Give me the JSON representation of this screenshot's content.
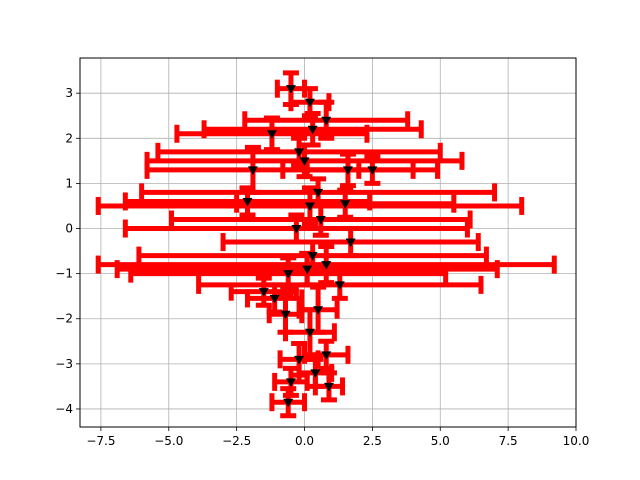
{
  "chart_data": {
    "type": "scatter",
    "title": "",
    "xlabel": "",
    "ylabel": "",
    "xlim": [
      -8.27,
      10.0
    ],
    "ylim": [
      -4.4,
      3.78
    ],
    "x_ticks": [
      -7.5,
      -5.0,
      -2.5,
      0.0,
      2.5,
      5.0,
      7.5,
      10.0
    ],
    "x_tick_labels": [
      "−7.5",
      "−5.0",
      "−2.5",
      "0.0",
      "2.5",
      "5.0",
      "7.5",
      "10.0"
    ],
    "y_ticks": [
      -4,
      -3,
      -2,
      -1,
      0,
      1,
      2,
      3
    ],
    "y_tick_labels": [
      "−4",
      "−3",
      "−2",
      "−1",
      "0",
      "1",
      "2",
      "3"
    ],
    "grid": true,
    "marker": "triangle-down",
    "marker_color": "#000000",
    "errorbar_color": "#ff0000",
    "series": [
      {
        "points": [
          {
            "x": -1.9,
            "y": 1.3,
            "xerr": 3.9,
            "yerr": 0.5
          },
          {
            "x": 1.6,
            "y": 1.3,
            "xerr": 2.4,
            "yerr": 0.35
          },
          {
            "x": 2.5,
            "y": 1.3,
            "xerr": 2.4,
            "yerr": 0.3
          },
          {
            "x": -1.2,
            "y": 2.1,
            "xerr": 3.5,
            "yerr": 0.35
          },
          {
            "x": 0.3,
            "y": 2.2,
            "xerr": 4.0,
            "yerr": 0.35
          },
          {
            "x": -0.5,
            "y": 3.1,
            "xerr": 0.5,
            "yerr": 0.35
          },
          {
            "x": 0.2,
            "y": 2.8,
            "xerr": 0.7,
            "yerr": 0.3
          },
          {
            "x": 0.8,
            "y": 2.4,
            "xerr": 3.0,
            "yerr": 0.4
          },
          {
            "x": -0.2,
            "y": 1.7,
            "xerr": 5.2,
            "yerr": 0.3
          },
          {
            "x": 0.0,
            "y": 1.5,
            "xerr": 5.8,
            "yerr": 0.35
          },
          {
            "x": 0.5,
            "y": 0.8,
            "xerr": 6.5,
            "yerr": 0.3
          },
          {
            "x": 0.2,
            "y": 0.5,
            "xerr": 7.8,
            "yerr": 0.4
          },
          {
            "x": -2.1,
            "y": 0.6,
            "xerr": 4.5,
            "yerr": 0.3
          },
          {
            "x": 1.5,
            "y": 0.55,
            "xerr": 4.0,
            "yerr": 0.3
          },
          {
            "x": 0.6,
            "y": 0.2,
            "xerr": 5.5,
            "yerr": 0.35
          },
          {
            "x": -0.3,
            "y": 0.0,
            "xerr": 6.3,
            "yerr": 0.3
          },
          {
            "x": 1.7,
            "y": -0.3,
            "xerr": 4.7,
            "yerr": 0.3
          },
          {
            "x": 0.3,
            "y": -0.6,
            "xerr": 6.4,
            "yerr": 0.3
          },
          {
            "x": 0.8,
            "y": -0.8,
            "xerr": 8.4,
            "yerr": 0.4
          },
          {
            "x": -0.6,
            "y": -1.0,
            "xerr": 5.8,
            "yerr": 0.35
          },
          {
            "x": 0.1,
            "y": -0.9,
            "xerr": 7.0,
            "yerr": 0.35
          },
          {
            "x": 1.3,
            "y": -1.25,
            "xerr": 5.2,
            "yerr": 0.3
          },
          {
            "x": -1.5,
            "y": -1.4,
            "xerr": 1.2,
            "yerr": 0.3
          },
          {
            "x": -1.1,
            "y": -1.55,
            "xerr": 1.0,
            "yerr": 0.3
          },
          {
            "x": 0.5,
            "y": -1.8,
            "xerr": 0.7,
            "yerr": 0.5
          },
          {
            "x": -0.7,
            "y": -1.9,
            "xerr": 0.6,
            "yerr": 0.4
          },
          {
            "x": 0.2,
            "y": -2.3,
            "xerr": 0.9,
            "yerr": 0.5
          },
          {
            "x": 0.8,
            "y": -2.8,
            "xerr": 0.8,
            "yerr": 0.3
          },
          {
            "x": -0.2,
            "y": -2.9,
            "xerr": 0.7,
            "yerr": 0.35
          },
          {
            "x": 0.4,
            "y": -3.2,
            "xerr": 0.6,
            "yerr": 0.3
          },
          {
            "x": -0.5,
            "y": -3.4,
            "xerr": 0.6,
            "yerr": 0.3
          },
          {
            "x": 0.9,
            "y": -3.5,
            "xerr": 0.5,
            "yerr": 0.3
          },
          {
            "x": -0.6,
            "y": -3.85,
            "xerr": 0.6,
            "yerr": 0.3
          }
        ]
      }
    ]
  }
}
